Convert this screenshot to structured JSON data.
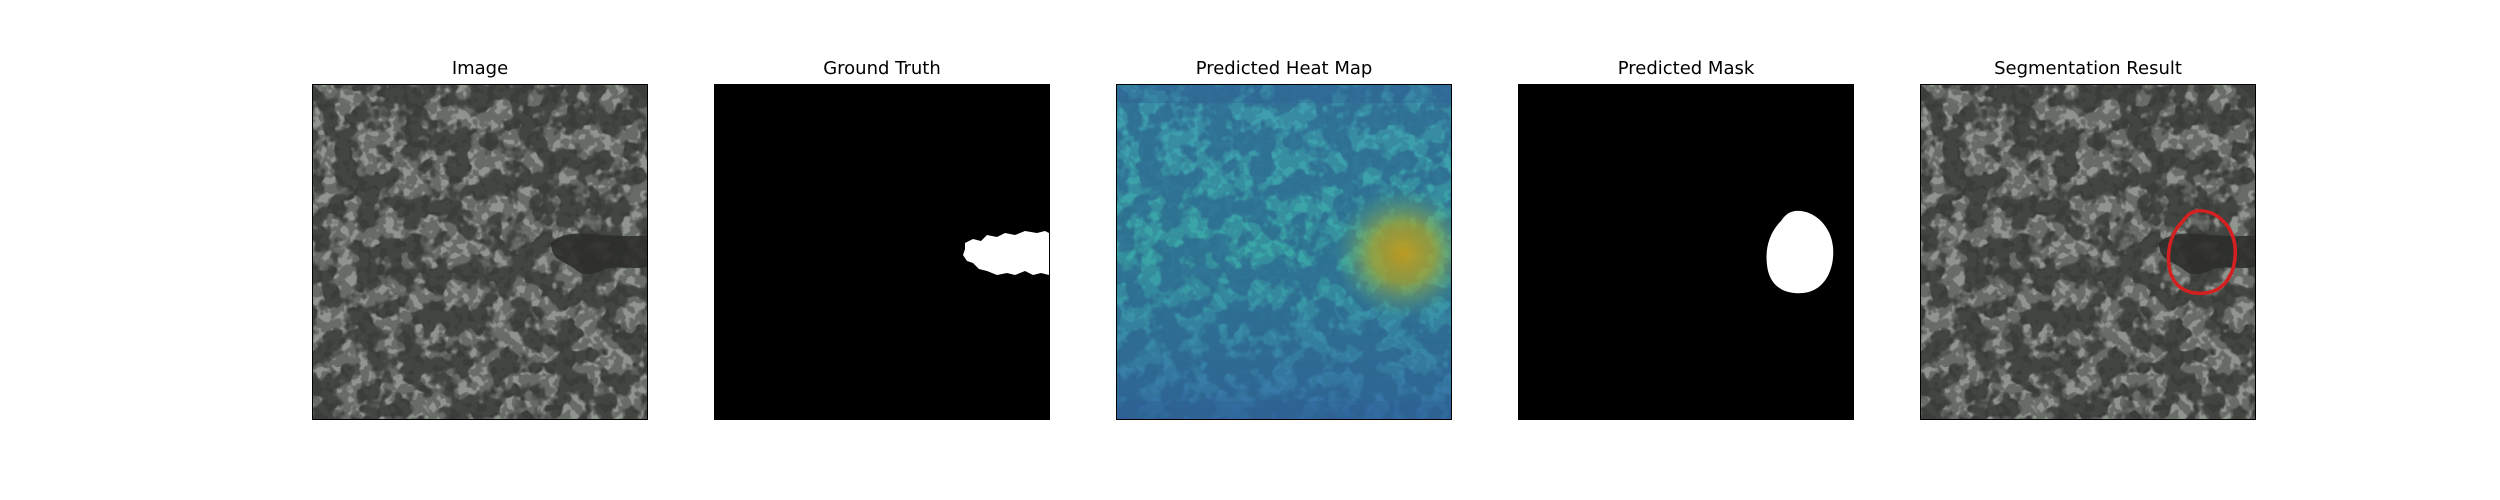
{
  "figure": {
    "panels": [
      {
        "title": "Image"
      },
      {
        "title": "Ground Truth"
      },
      {
        "title": "Predicted Heat Map"
      },
      {
        "title": "Predicted Mask"
      },
      {
        "title": "Segmentation Result"
      }
    ]
  },
  "colors": {
    "texture_light": "#8f948e",
    "texture_dark": "#3b3d3a",
    "mask_foreground": "#ffffff",
    "mask_background": "#000000",
    "heat_low": "#2f5e94",
    "heat_mid": "#3aa6a0",
    "heat_high": "#c4a020",
    "result_outline": "#d42020"
  }
}
